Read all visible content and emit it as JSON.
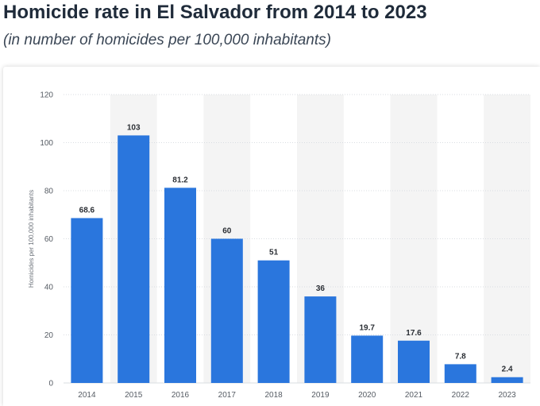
{
  "header": {
    "title": "Homicide rate in El Salvador from 2014 to 2023",
    "subtitle": "(in number of homicides per 100,000 inhabitants)"
  },
  "colors": {
    "bar": "#2a76dd",
    "band": "#f4f4f4",
    "grid": "#d9dde2"
  },
  "chart_data": {
    "type": "bar",
    "title": "Homicide rate in El Salvador from 2014 to 2023",
    "subtitle": "(in number of homicides per 100,000 inhabitants)",
    "xlabel": "",
    "ylabel": "Homicides per 100,000 inhabitants",
    "categories": [
      "2014",
      "2015",
      "2016",
      "2017",
      "2018",
      "2019",
      "2020",
      "2021",
      "2022",
      "2023"
    ],
    "values": [
      68.6,
      103,
      81.2,
      60,
      51,
      36,
      19.7,
      17.6,
      7.8,
      2.4
    ],
    "value_labels": [
      "68.6",
      "103",
      "81.2",
      "60",
      "51",
      "36",
      "19.7",
      "17.6",
      "7.8",
      "2.4"
    ],
    "ylim": [
      0,
      120
    ],
    "yticks": [
      0,
      20,
      40,
      60,
      80,
      100,
      120
    ],
    "grid": true,
    "legend": "none"
  }
}
